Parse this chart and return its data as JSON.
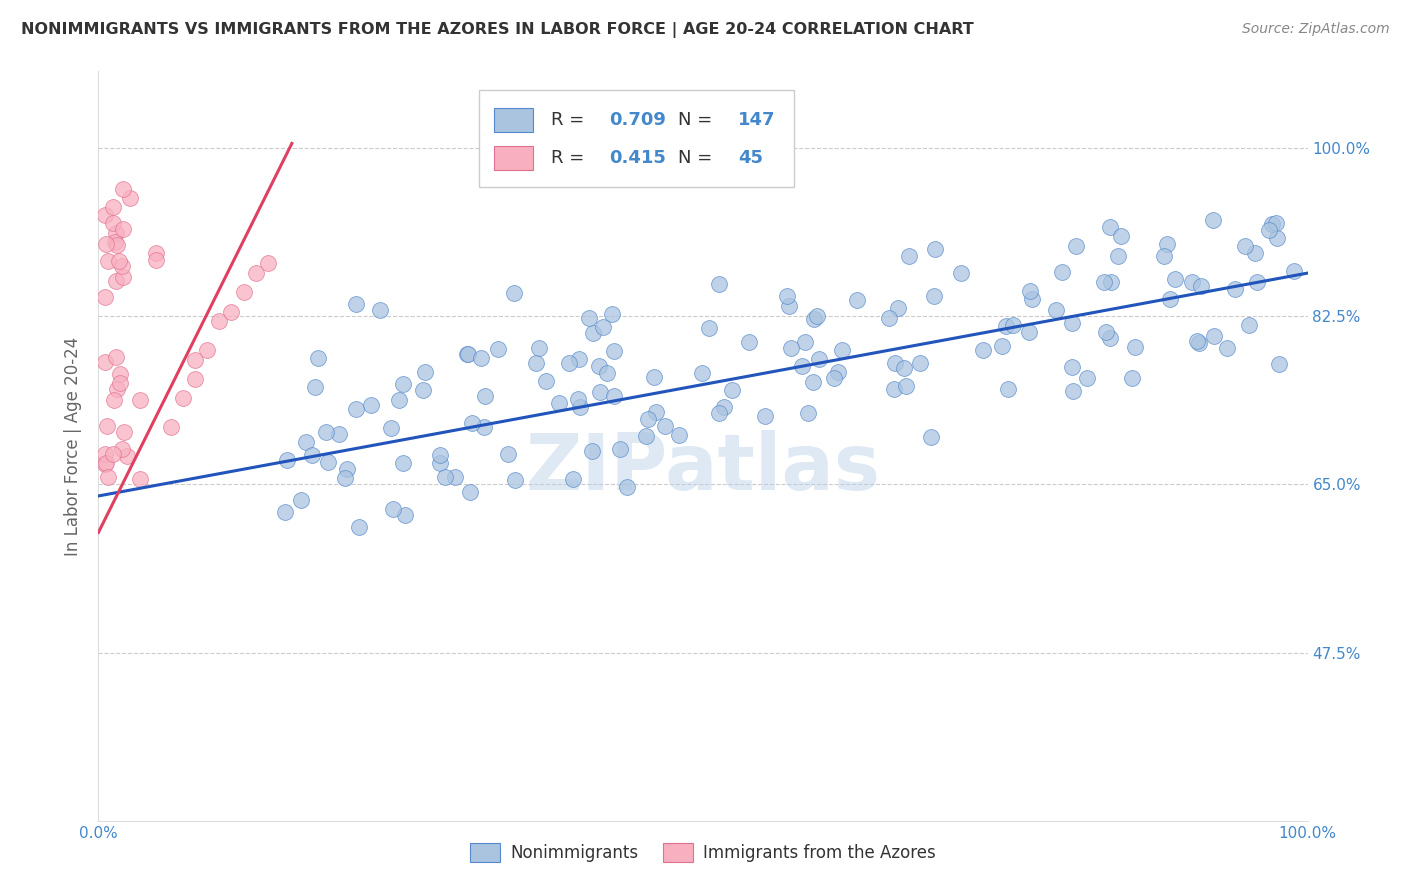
{
  "title": "NONIMMIGRANTS VS IMMIGRANTS FROM THE AZORES IN LABOR FORCE | AGE 20-24 CORRELATION CHART",
  "source": "Source: ZipAtlas.com",
  "ylabel": "In Labor Force | Age 20-24",
  "xlim": [
    0.0,
    1.0
  ],
  "ylim": [
    0.3,
    1.08
  ],
  "x_ticks": [
    0.0,
    0.1,
    0.2,
    0.3,
    0.4,
    0.5,
    0.6,
    0.7,
    0.8,
    0.9,
    1.0
  ],
  "x_tick_labels": [
    "0.0%",
    "",
    "",
    "",
    "",
    "",
    "",
    "",
    "",
    "",
    "100.0%"
  ],
  "y_tick_positions": [
    0.475,
    0.65,
    0.825,
    1.0
  ],
  "y_tick_labels": [
    "47.5%",
    "65.0%",
    "82.5%",
    "100.0%"
  ],
  "blue_R": 0.709,
  "blue_N": 147,
  "pink_R": 0.415,
  "pink_N": 45,
  "blue_color": "#aac4e0",
  "blue_edge_color": "#5588cc",
  "blue_line_color": "#2255bb",
  "pink_color": "#f8b0c0",
  "pink_edge_color": "#e07090",
  "pink_line_color": "#e04060",
  "blue_line_y0": 0.638,
  "blue_line_y1": 0.87,
  "pink_line_x0": 0.0,
  "pink_line_x1": 0.16,
  "pink_line_y0": 0.6,
  "pink_line_y1": 1.005,
  "watermark": "ZIPatlas",
  "background_color": "#ffffff",
  "grid_color": "#cccccc",
  "title_color": "#333333",
  "label_color": "#666666",
  "axis_label_color": "#4488cc",
  "legend_text_color": "#333333",
  "legend_value_color": "#4488cc"
}
